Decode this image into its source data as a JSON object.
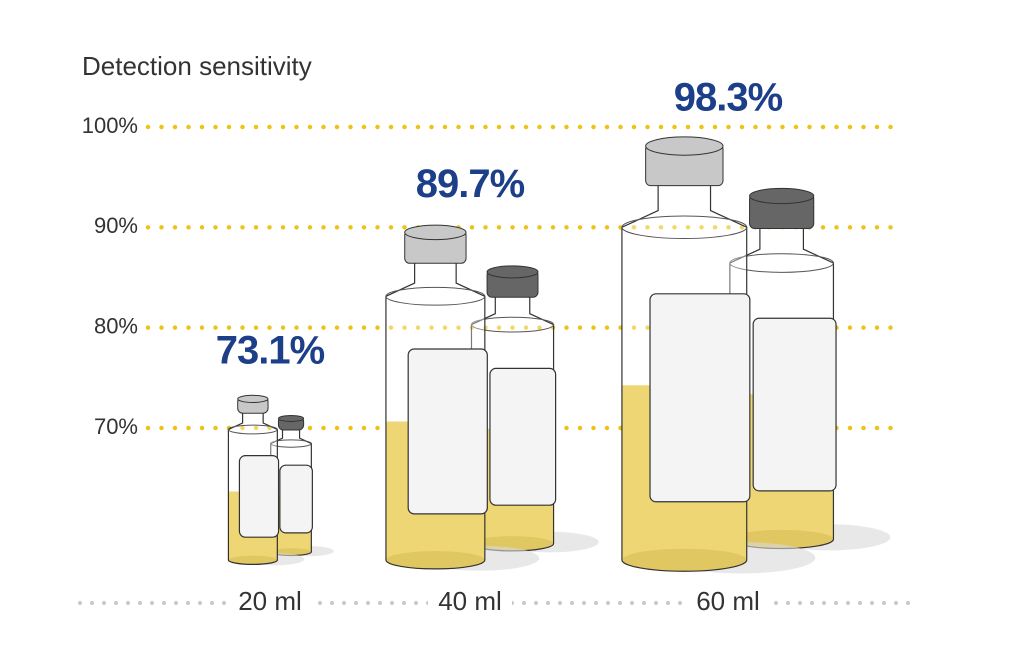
{
  "chart_data": {
    "type": "bottles",
    "title": "Detection sensitivity",
    "categories": [
      "20 ml",
      "40 ml",
      "60 ml"
    ],
    "values": [
      73.1,
      89.7,
      98.3
    ],
    "value_labels": [
      "73.1%",
      "89.7%",
      "98.3%"
    ],
    "ylim": [
      60,
      100
    ],
    "yticks": [
      {
        "value": 70,
        "label": "70%"
      },
      {
        "value": 80,
        "label": "80%"
      },
      {
        "value": 90,
        "label": "90%"
      },
      {
        "value": 100,
        "label": "100%"
      }
    ],
    "grid": true,
    "grid_color": "#ecc31a",
    "label_color": "#1d3f8a",
    "liquid_color": "#e6c12a"
  }
}
